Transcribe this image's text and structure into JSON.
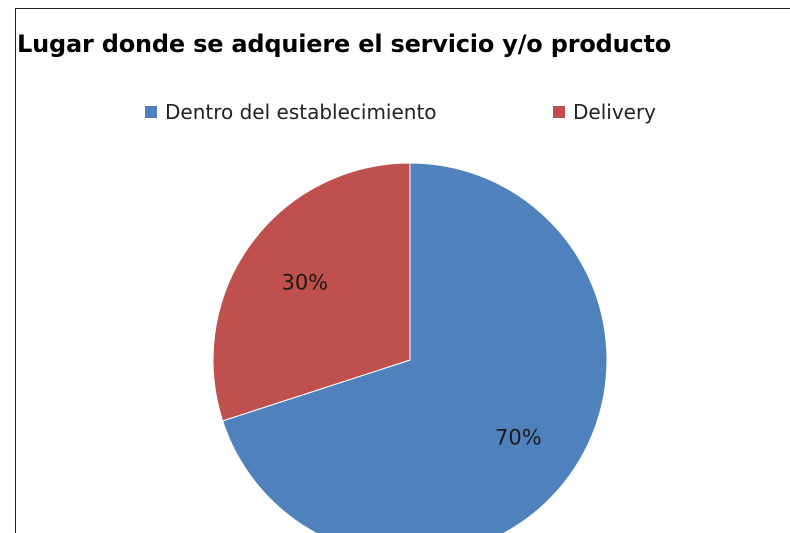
{
  "chart_data": {
    "type": "pie",
    "title": "Lugar donde se adquiere el servicio y/o producto",
    "categories": [
      "Dentro del establecimiento",
      "Delivery"
    ],
    "values": [
      70,
      30
    ],
    "data_labels": [
      "70%",
      "30%"
    ],
    "colors": [
      "#4f81bd",
      "#c0504d"
    ],
    "legend_position": "top",
    "start_angle": "12 o'clock, clockwise"
  }
}
